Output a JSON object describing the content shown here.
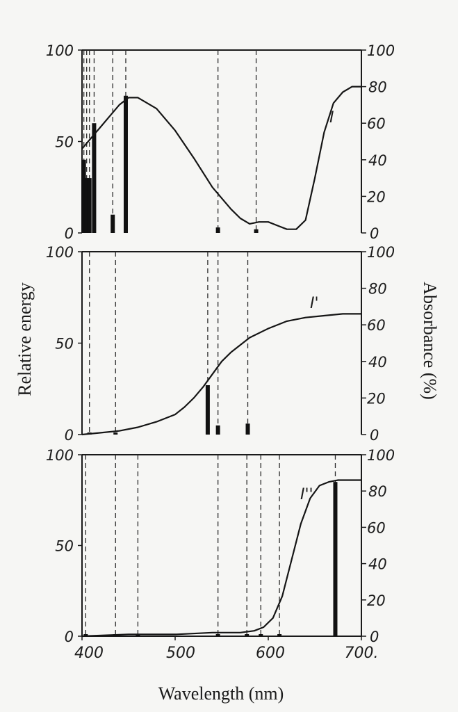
{
  "chart_data": [
    {
      "type": "line",
      "panel": "top",
      "series_label": "I",
      "xlim": [
        400,
        700
      ],
      "left_ylim": [
        0,
        100
      ],
      "right_ylim": [
        0,
        100
      ],
      "left_ticks": [
        "100",
        "50",
        "0"
      ],
      "right_ticks": [
        "100",
        "80",
        "60",
        "40",
        "20",
        "0"
      ],
      "curve": {
        "x": [
          400,
          410,
          420,
          430,
          440,
          450,
          460,
          480,
          500,
          520,
          540,
          560,
          570,
          580,
          590,
          600,
          610,
          620,
          630,
          640,
          650,
          660,
          670,
          680,
          690,
          700
        ],
        "y": [
          46,
          52,
          58,
          64,
          70,
          74,
          74,
          68,
          56,
          41,
          25,
          13,
          8,
          5,
          6,
          6,
          4,
          2,
          2,
          7,
          30,
          55,
          71,
          77,
          80,
          80
        ]
      },
      "lines": [
        {
          "x": 402,
          "energy": 40
        },
        {
          "x": 405,
          "energy": 30
        },
        {
          "x": 408,
          "energy": 30
        },
        {
          "x": 413,
          "energy": 60
        },
        {
          "x": 433,
          "energy": 10
        },
        {
          "x": 447,
          "energy": 75
        },
        {
          "x": 546,
          "energy": 3
        },
        {
          "x": 587,
          "energy": 2
        }
      ],
      "dashed_x": [
        402,
        405,
        408,
        413,
        433,
        447,
        546,
        587
      ]
    },
    {
      "type": "line",
      "panel": "middle",
      "series_label": "I'",
      "xlim": [
        400,
        700
      ],
      "left_ylim": [
        0,
        100
      ],
      "right_ylim": [
        0,
        100
      ],
      "left_ticks": [
        "100",
        "50",
        "0"
      ],
      "right_ticks": [
        "100",
        "80",
        "60",
        "40",
        "20",
        "0"
      ],
      "curve": {
        "x": [
          400,
          420,
          440,
          460,
          480,
          500,
          510,
          520,
          530,
          540,
          550,
          560,
          570,
          580,
          600,
          620,
          640,
          660,
          680,
          700
        ],
        "y": [
          0,
          1,
          2,
          4,
          7,
          11,
          15,
          20,
          26,
          33,
          40,
          45,
          49,
          53,
          58,
          62,
          64,
          65,
          66,
          66
        ]
      },
      "lines": [
        {
          "x": 408,
          "energy": 1
        },
        {
          "x": 436,
          "energy": 1
        },
        {
          "x": 535,
          "energy": 27
        },
        {
          "x": 546,
          "energy": 5
        },
        {
          "x": 578,
          "energy": 6
        }
      ],
      "dashed_x": [
        408,
        436,
        535,
        546,
        578
      ]
    },
    {
      "type": "line",
      "panel": "bottom",
      "series_label": "I''",
      "xlim": [
        400,
        700
      ],
      "left_ylim": [
        0,
        100
      ],
      "right_ylim": [
        0,
        100
      ],
      "left_ticks": [
        "100",
        "50",
        "0"
      ],
      "right_ticks": [
        "100",
        "80",
        "60",
        "40",
        "20",
        "0"
      ],
      "curve": {
        "x": [
          400,
          450,
          500,
          540,
          570,
          585,
          595,
          605,
          615,
          625,
          635,
          645,
          655,
          665,
          675,
          685,
          700
        ],
        "y": [
          0,
          1,
          1,
          2,
          2,
          3,
          5,
          10,
          22,
          42,
          62,
          76,
          83,
          85,
          86,
          86,
          86
        ]
      },
      "lines": [
        {
          "x": 404,
          "energy": 1
        },
        {
          "x": 436,
          "energy": 1
        },
        {
          "x": 460,
          "energy": 1
        },
        {
          "x": 546,
          "energy": 1
        },
        {
          "x": 577,
          "energy": 1
        },
        {
          "x": 592,
          "energy": 1
        },
        {
          "x": 612,
          "energy": 1
        },
        {
          "x": 672,
          "energy": 85
        }
      ],
      "dashed_x": [
        404,
        436,
        460,
        546,
        577,
        592,
        612,
        672
      ]
    }
  ],
  "xticks": [
    "400",
    "500",
    "600",
    "700."
  ],
  "xtick_values": [
    400,
    500,
    600,
    700
  ],
  "xlabel": "Wavelength (nm)",
  "ylabel_left": "Relative energy",
  "ylabel_right": "Absorbance (%)"
}
